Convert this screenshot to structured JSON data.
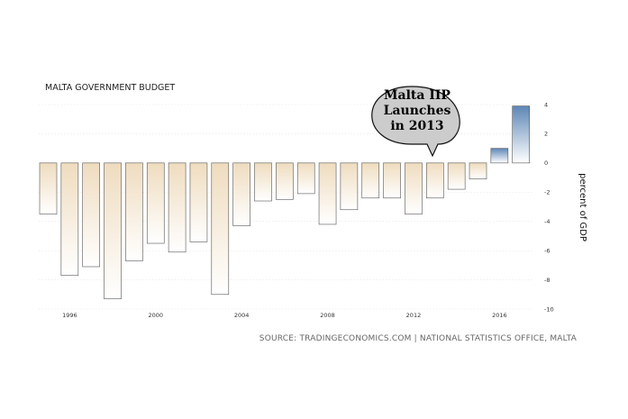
{
  "chart_data": {
    "type": "bar",
    "title": "MALTA GOVERNMENT BUDGET",
    "ylabel": "percent of GDP",
    "xlabel": "",
    "source": "SOURCE: TRADINGECONOMICS.COM | NATIONAL STATISTICS OFFICE, MALTA",
    "annotation": [
      "Malta IIP",
      "Launches",
      "in 2013"
    ],
    "ylim": [
      -10,
      4
    ],
    "yticks": [
      4,
      2,
      0,
      -2,
      -4,
      -6,
      -8,
      -10
    ],
    "xtick_labels": [
      {
        "label": "1996",
        "year": 1996
      },
      {
        "label": "2000",
        "year": 2000
      },
      {
        "label": "2004",
        "year": 2004
      },
      {
        "label": "2008",
        "year": 2008
      },
      {
        "label": "2012",
        "year": 2012
      },
      {
        "label": "2016",
        "year": 2016
      }
    ],
    "categories": [
      "1995",
      "1996",
      "1997",
      "1998",
      "1999",
      "2000",
      "2001",
      "2002",
      "2003",
      "2004",
      "2005",
      "2006",
      "2007",
      "2008",
      "2009",
      "2010",
      "2011",
      "2012",
      "2013",
      "2014",
      "2015",
      "2016",
      "2017"
    ],
    "values": [
      -3.5,
      -7.7,
      -7.1,
      -9.3,
      -6.7,
      -5.5,
      -6.1,
      -5.4,
      -9.0,
      -4.3,
      -2.6,
      -2.5,
      -2.1,
      -4.2,
      -3.2,
      -2.4,
      -2.4,
      -3.5,
      -2.4,
      -1.8,
      -1.1,
      1.0,
      3.9
    ],
    "grid": true,
    "colors": {
      "negative_top": "#efdcbf",
      "negative_bottom": "#ffffff",
      "positive_top": "#5d86b6",
      "positive_bottom": "#ffffff",
      "bar_stroke": "#555555",
      "grid": "#e6e6e6",
      "bubble_fill": "#cccccc"
    }
  }
}
